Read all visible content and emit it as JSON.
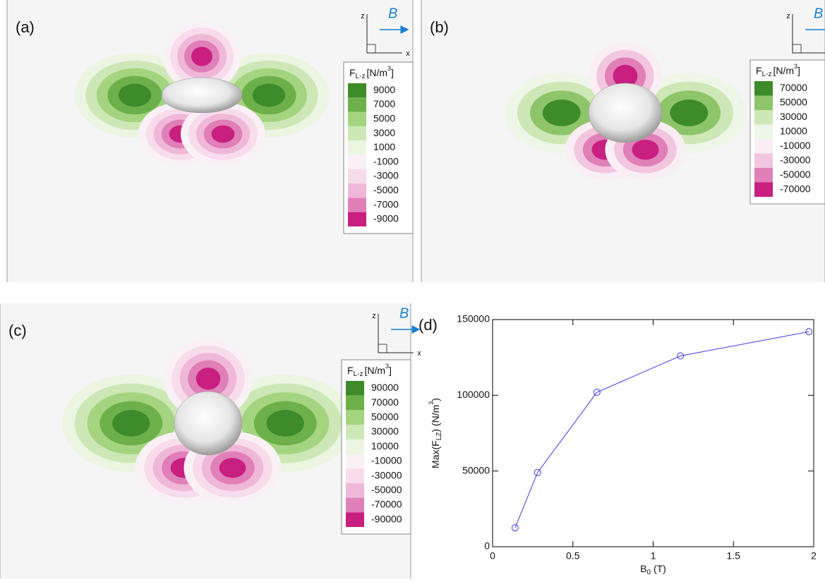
{
  "chart_data": [
    {
      "type": "contour",
      "panel_label": "(a)",
      "axes": {
        "z": "z",
        "x": "x",
        "field": "B"
      },
      "legend_title": {
        "symbol": "F",
        "subscript": "L-z",
        "unit": "[N/m",
        "unit_power": "3",
        "close": "]"
      },
      "levels": [
        9000,
        7000,
        5000,
        3000,
        1000,
        -1000,
        -3000,
        -5000,
        -7000,
        -9000
      ],
      "colors": [
        "#3d8b2a",
        "#6db04a",
        "#a4d47f",
        "#cde8b6",
        "#ebf5e2",
        "#f9f1f6",
        "#f8dcec",
        "#f0b8d8",
        "#e07fb8",
        "#c81f80"
      ]
    },
    {
      "type": "contour",
      "panel_label": "(b)",
      "axes": {
        "z": "z",
        "x": "x",
        "field": "B"
      },
      "legend_title": {
        "symbol": "F",
        "subscript": "L-z",
        "unit": "[N/m",
        "unit_power": "3",
        "close": "]"
      },
      "levels": [
        70000,
        50000,
        30000,
        10000,
        -10000,
        -30000,
        -50000,
        -70000
      ],
      "colors": [
        "#3d8b2a",
        "#8fc56a",
        "#cde8b6",
        "#eef6e8",
        "#f9eef4",
        "#f3c6df",
        "#e07fb8",
        "#c81f80"
      ]
    },
    {
      "type": "contour",
      "panel_label": "(c)",
      "axes": {
        "z": "z",
        "x": "x",
        "field": "B"
      },
      "legend_title": {
        "symbol": "F",
        "subscript": "L-z",
        "unit": "[N/m",
        "unit_power": "3",
        "close": "]"
      },
      "levels": [
        90000,
        70000,
        50000,
        30000,
        10000,
        -10000,
        -30000,
        -50000,
        -70000,
        -90000
      ],
      "colors": [
        "#3d8b2a",
        "#6db04a",
        "#a4d47f",
        "#cde8b6",
        "#ebf5e2",
        "#f9f1f6",
        "#f8dcec",
        "#f0b8d8",
        "#e07fb8",
        "#c81f80"
      ]
    },
    {
      "type": "line",
      "panel_label": "(d)",
      "xlabel": {
        "symbol": "B",
        "subscript": "0",
        "unit": " (T)"
      },
      "ylabel": {
        "prefix": "Max(F",
        "subscript": "LZ",
        "unit": ") (N/m",
        "unit_power": "3",
        "close": ")"
      },
      "x": [
        0.14,
        0.28,
        0.65,
        1.17,
        1.97
      ],
      "values": [
        12500,
        49000,
        102000,
        126000,
        142000
      ],
      "color": "#3a3adf",
      "xlim": [
        0,
        2
      ],
      "ylim": [
        0,
        150000
      ],
      "xticks": [
        0,
        0.5,
        1,
        1.5,
        2
      ],
      "yticks": [
        0,
        50000,
        100000,
        150000
      ]
    }
  ]
}
